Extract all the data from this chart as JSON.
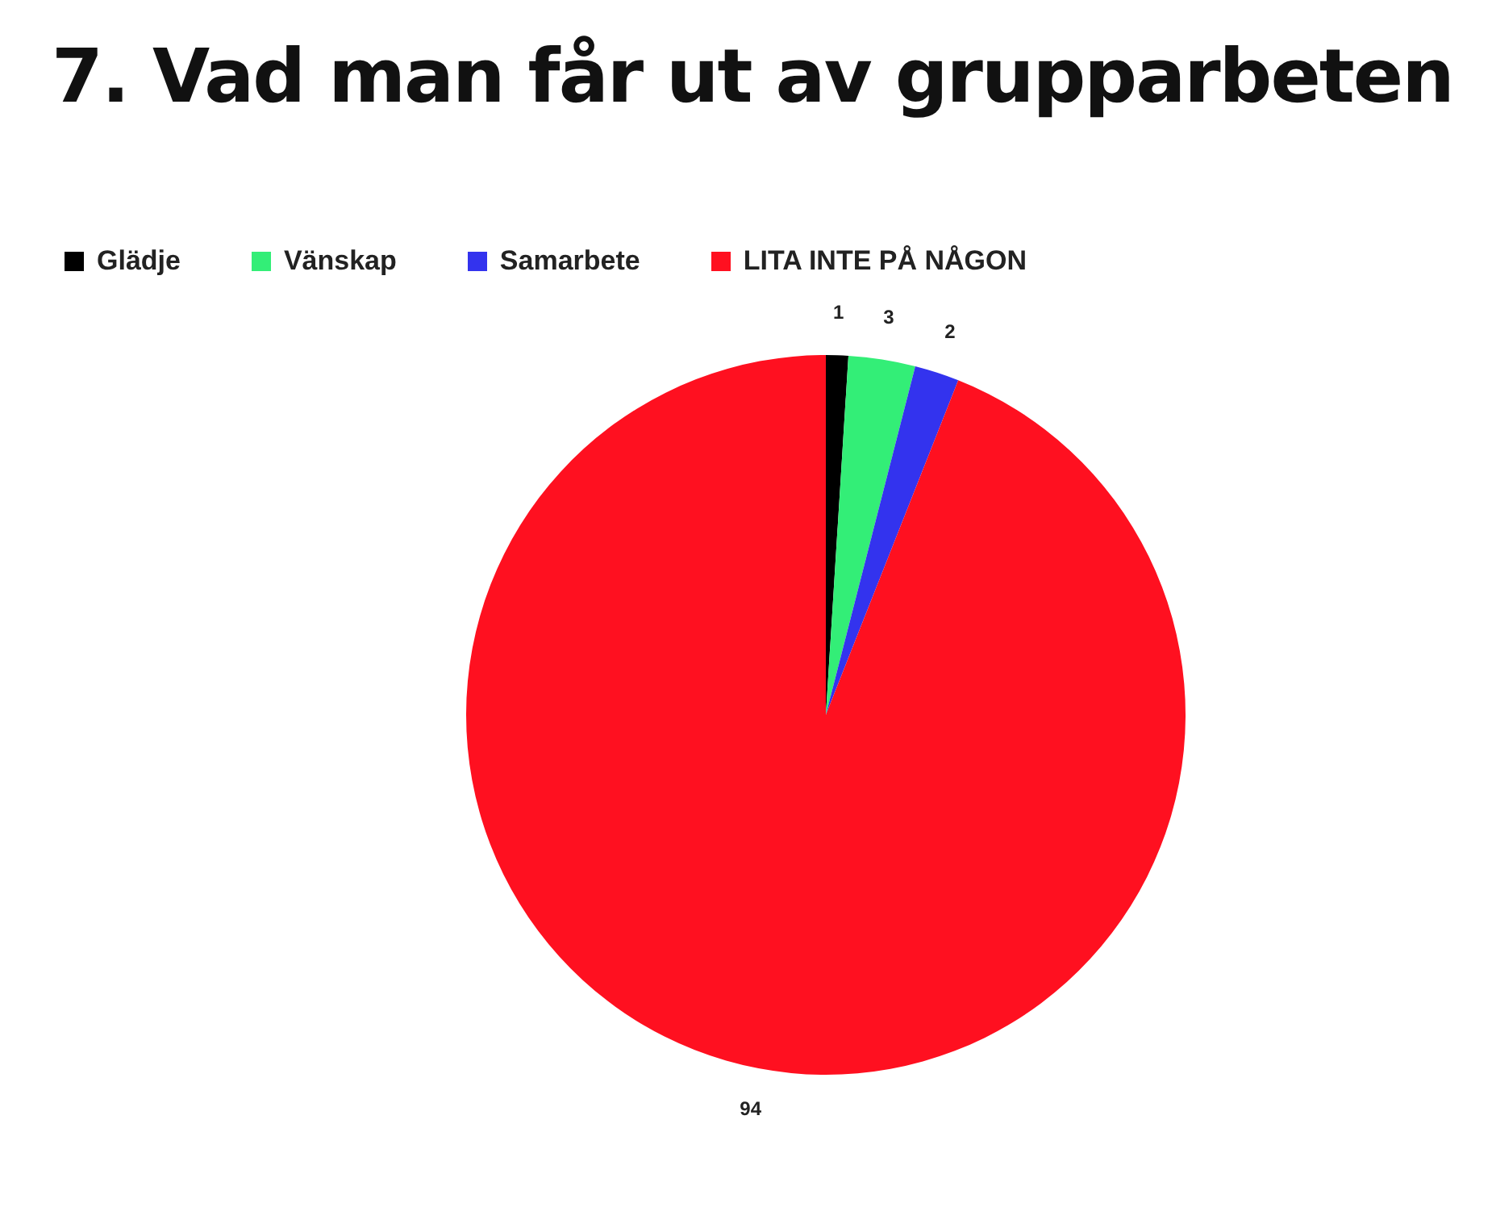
{
  "chart_data": {
    "type": "pie",
    "title": "7. Vad man får ut av grupparbeten",
    "categories": [
      "Glädje",
      "Vänskap",
      "Samarbete",
      "LITA INTE PÅ NÅGON"
    ],
    "values": [
      1,
      3,
      2,
      94
    ],
    "colors": [
      "#000000",
      "#33ee77",
      "#3333ee",
      "#ff1020"
    ],
    "legend": "top left",
    "data_labels": true
  }
}
